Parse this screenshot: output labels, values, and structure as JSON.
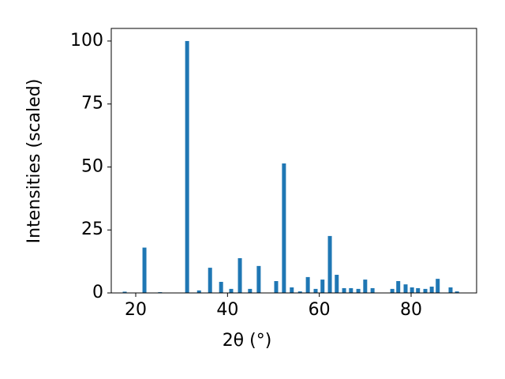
{
  "chart_data": {
    "type": "bar",
    "x_label": "2θ (°)",
    "y_label": "Intensities (scaled)",
    "x": [
      17.6,
      21.9,
      25.3,
      31.2,
      33.8,
      36.2,
      38.6,
      40.8,
      42.7,
      44.9,
      46.8,
      50.6,
      52.3,
      54.0,
      55.8,
      57.5,
      59.2,
      60.7,
      62.3,
      63.8,
      65.4,
      66.9,
      68.5,
      70.0,
      71.6,
      75.9,
      77.2,
      78.8,
      80.2,
      81.5,
      83.1,
      84.5,
      85.8,
      88.6,
      90.0
    ],
    "values": [
      0.5,
      18,
      0.3,
      100,
      1,
      10,
      4.4,
      1.6,
      13.8,
      1.6,
      10.7,
      4.7,
      51.4,
      2.2,
      0.6,
      6.3,
      1.6,
      5.3,
      22.6,
      7.2,
      1.9,
      1.9,
      1.6,
      5.3,
      1.9,
      1.6,
      4.7,
      3.4,
      2.2,
      1.9,
      1.6,
      2.5,
      5.6,
      2.2,
      0.6
    ],
    "color": "#1f77b4",
    "xlim": [
      14.67,
      94.27
    ],
    "ylim": [
      0,
      105
    ],
    "xticks": [
      20,
      40,
      60,
      80
    ],
    "yticks": [
      0,
      25,
      50,
      75,
      100
    ]
  }
}
